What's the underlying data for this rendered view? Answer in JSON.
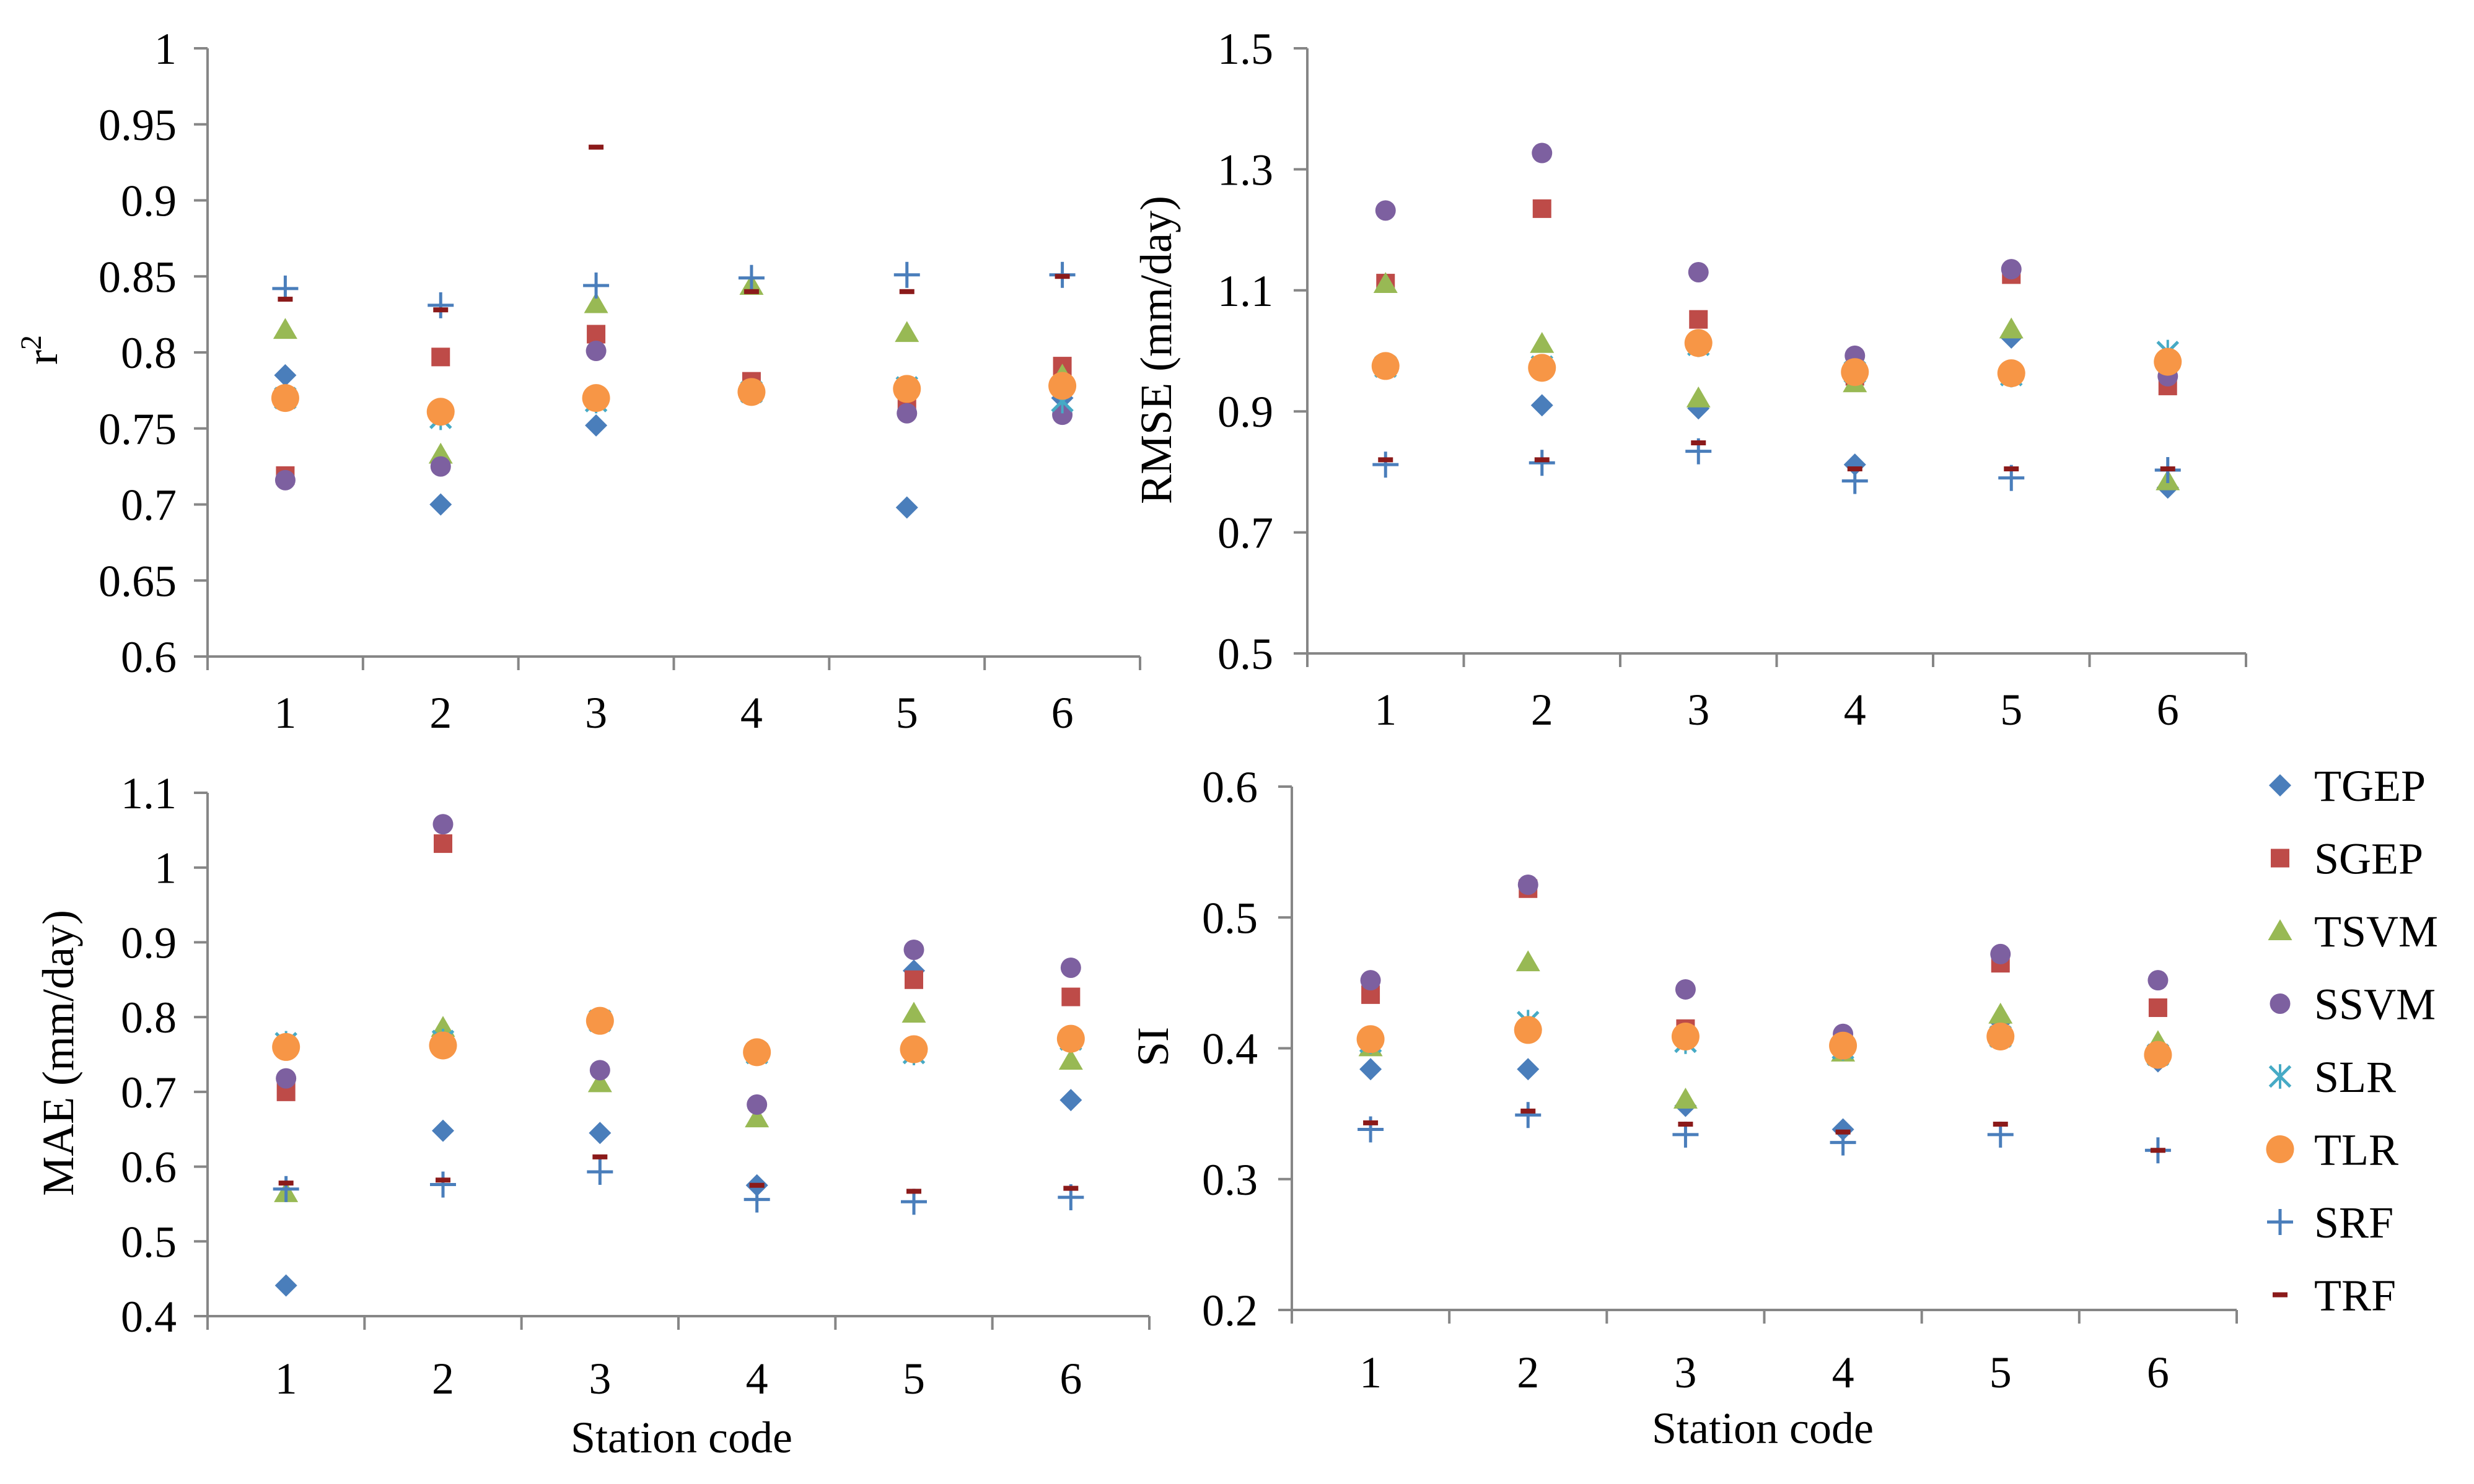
{
  "colors": {
    "TGEP": "#4a7ebb",
    "SGEP": "#be4b48",
    "TSVM": "#98b954",
    "SSVM": "#7d60a0",
    "SLR": "#46aac5",
    "TLR": "#f79646",
    "SRF": "#4a7ebb",
    "TRF": "#8b1a1a",
    "axis": "#868686"
  },
  "legend": {
    "entries": [
      "TGEP",
      "SGEP",
      "TSVM",
      "SSVM",
      "SLR",
      "TLR",
      "SRF",
      "TRF"
    ]
  },
  "chart_data": [
    {
      "type": "scatter",
      "title": "",
      "xlabel": "",
      "ylabel": "r",
      "ylabel_sup": "2",
      "categories": [
        "1",
        "2",
        "3",
        "4",
        "5",
        "6"
      ],
      "ylim": [
        0.6,
        1
      ],
      "yticks": [
        "0.6",
        "0.65",
        "0.7",
        "0.75",
        "0.8",
        "0.85",
        "0.9",
        "0.95",
        "1"
      ],
      "series": [
        {
          "name": "TGEP",
          "values": [
            0.785,
            0.7,
            0.752,
            0.776,
            0.698,
            0.77
          ]
        },
        {
          "name": "SGEP",
          "values": [
            0.719,
            0.797,
            0.812,
            0.781,
            0.768,
            0.791
          ]
        },
        {
          "name": "TSVM",
          "values": [
            0.815,
            0.733,
            0.832,
            0.844,
            0.813,
            0.785
          ]
        },
        {
          "name": "SSVM",
          "values": [
            0.716,
            0.725,
            0.801,
            0.775,
            0.76,
            0.759
          ]
        },
        {
          "name": "SLR",
          "values": [
            0.77,
            0.757,
            0.768,
            0.774,
            0.777,
            0.768
          ]
        },
        {
          "name": "TLR",
          "values": [
            0.77,
            0.761,
            0.77,
            0.774,
            0.776,
            0.778
          ]
        },
        {
          "name": "SRF",
          "values": [
            0.842,
            0.831,
            0.844,
            0.849,
            0.851,
            0.851
          ]
        },
        {
          "name": "TRF",
          "values": [
            0.835,
            0.828,
            0.935,
            0.84,
            0.84,
            0.85
          ]
        }
      ]
    },
    {
      "type": "scatter",
      "title": "",
      "xlabel": "",
      "ylabel": "RMSE (mm/day)",
      "categories": [
        "1",
        "2",
        "3",
        "4",
        "5",
        "6"
      ],
      "ylim": [
        0.5,
        1.5
      ],
      "yticks": [
        "0.5",
        "0.7",
        "0.9",
        "1.1",
        "1.3",
        "1.5"
      ],
      "series": [
        {
          "name": "TGEP",
          "values": [
            0.975,
            0.91,
            0.905,
            0.812,
            1.022,
            0.774
          ]
        },
        {
          "name": "SGEP",
          "values": [
            1.112,
            1.235,
            1.052,
            0.958,
            1.126,
            0.942
          ]
        },
        {
          "name": "TSVM",
          "values": [
            1.111,
            1.012,
            0.922,
            0.947,
            1.036,
            0.785
          ]
        },
        {
          "name": "SSVM",
          "values": [
            1.232,
            1.327,
            1.13,
            0.992,
            1.135,
            0.958
          ]
        },
        {
          "name": "SLR",
          "values": [
            0.974,
            0.974,
            1.01,
            0.965,
            0.96,
            0.998
          ]
        },
        {
          "name": "TLR",
          "values": [
            0.975,
            0.972,
            1.013,
            0.965,
            0.963,
            0.982
          ]
        },
        {
          "name": "SRF",
          "values": [
            0.812,
            0.815,
            0.834,
            0.785,
            0.79,
            0.803
          ]
        },
        {
          "name": "TRF",
          "values": [
            0.82,
            0.82,
            0.848,
            0.805,
            0.805,
            0.805
          ]
        }
      ]
    },
    {
      "type": "scatter",
      "title": "",
      "xlabel": "Station code",
      "ylabel": "MAE (mm/day)",
      "categories": [
        "1",
        "2",
        "3",
        "4",
        "5",
        "6"
      ],
      "ylim": [
        0.4,
        1.1
      ],
      "yticks": [
        "0.4",
        "0.5",
        "0.6",
        "0.7",
        "0.8",
        "0.9",
        "1",
        "1.1"
      ],
      "series": [
        {
          "name": "TGEP",
          "values": [
            0.441,
            0.648,
            0.645,
            0.575,
            0.862,
            0.689
          ]
        },
        {
          "name": "SGEP",
          "values": [
            0.7,
            1.032,
            0.797,
            0.753,
            0.85,
            0.827
          ]
        },
        {
          "name": "TSVM",
          "values": [
            0.565,
            0.786,
            0.712,
            0.665,
            0.805,
            0.742
          ]
        },
        {
          "name": "SSVM",
          "values": [
            0.718,
            1.058,
            0.729,
            0.683,
            0.89,
            0.866
          ]
        },
        {
          "name": "SLR",
          "values": [
            0.765,
            0.768,
            0.795,
            0.752,
            0.752,
            0.77
          ]
        },
        {
          "name": "TLR",
          "values": [
            0.76,
            0.762,
            0.795,
            0.753,
            0.757,
            0.771
          ]
        },
        {
          "name": "SRF",
          "values": [
            0.57,
            0.576,
            0.593,
            0.556,
            0.553,
            0.559
          ]
        },
        {
          "name": "TRF",
          "values": [
            0.578,
            0.582,
            0.613,
            0.575,
            0.567,
            0.571
          ]
        }
      ]
    },
    {
      "type": "scatter",
      "title": "",
      "xlabel": "Station code",
      "ylabel": "SI",
      "categories": [
        "1",
        "2",
        "3",
        "4",
        "5",
        "6"
      ],
      "ylim": [
        0.2,
        0.6
      ],
      "yticks": [
        "0.2",
        "0.3",
        "0.4",
        "0.5",
        "0.6"
      ],
      "series": [
        {
          "name": "TGEP",
          "values": [
            0.384,
            0.384,
            0.356,
            0.338,
            0.42,
            0.39
          ]
        },
        {
          "name": "SGEP",
          "values": [
            0.441,
            0.522,
            0.415,
            0.399,
            0.465,
            0.431
          ]
        },
        {
          "name": "TSVM",
          "values": [
            0.401,
            0.466,
            0.361,
            0.397,
            0.426,
            0.405
          ]
        },
        {
          "name": "SSVM",
          "values": [
            0.452,
            0.525,
            0.445,
            0.411,
            0.472,
            0.452
          ]
        },
        {
          "name": "SLR",
          "values": [
            0.405,
            0.42,
            0.405,
            0.4,
            0.409,
            0.395
          ]
        },
        {
          "name": "TLR",
          "values": [
            0.407,
            0.414,
            0.409,
            0.402,
            0.409,
            0.395
          ]
        },
        {
          "name": "SRF",
          "values": [
            0.338,
            0.349,
            0.334,
            0.328,
            0.334,
            0.322
          ]
        },
        {
          "name": "TRF",
          "values": [
            0.343,
            0.352,
            0.342,
            0.336,
            0.342,
            0.322
          ]
        }
      ]
    }
  ]
}
